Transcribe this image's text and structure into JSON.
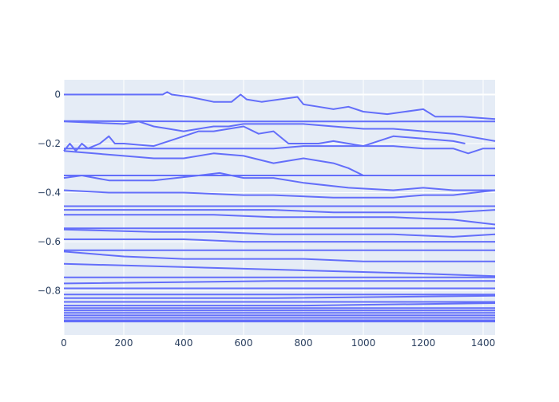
{
  "chart_data": {
    "type": "line",
    "title": "",
    "xlabel": "",
    "ylabel": "",
    "xlim": [
      0,
      1440
    ],
    "ylim": [
      -0.98,
      0.06
    ],
    "x_ticks": [
      0,
      200,
      400,
      600,
      800,
      1000,
      1200,
      1400
    ],
    "y_ticks": [
      0,
      -0.2,
      -0.4,
      -0.6,
      -0.8
    ],
    "x_tick_labels": [
      "0",
      "200",
      "400",
      "600",
      "800",
      "1000",
      "1200",
      "1400"
    ],
    "y_tick_labels": [
      "0",
      "−0.2",
      "−0.4",
      "−0.6",
      "−0.8"
    ],
    "grid": true,
    "legend": "none",
    "colors": {
      "series": "#636efa",
      "plot_background": "#e5ecf6",
      "grid": "#ffffff",
      "tick_text": "#2a3f5f"
    },
    "series": [
      {
        "x": [
          0,
          330,
          345,
          360,
          420,
          500,
          560,
          590,
          610,
          660,
          780,
          800,
          850,
          900,
          950,
          1000,
          1080,
          1200,
          1240,
          1330,
          1440
        ],
        "values": [
          0,
          0,
          0.01,
          0,
          -0.01,
          -0.03,
          -0.03,
          0,
          -0.02,
          -0.03,
          -0.01,
          -0.04,
          -0.05,
          -0.06,
          -0.05,
          -0.07,
          -0.08,
          -0.06,
          -0.09,
          -0.09,
          -0.1
        ]
      },
      {
        "x": [
          0,
          500,
          600,
          800,
          900,
          1000,
          1100,
          1200,
          1300,
          1440
        ],
        "values": [
          -0.108,
          -0.11,
          -0.11,
          -0.11,
          -0.11,
          -0.11,
          -0.11,
          -0.11,
          -0.11,
          -0.11
        ]
      },
      {
        "x": [
          0,
          200,
          250,
          300,
          350,
          400,
          450,
          500,
          550,
          600,
          700,
          800,
          900,
          1000,
          1100,
          1200,
          1300,
          1440
        ],
        "values": [
          -0.11,
          -0.12,
          -0.11,
          -0.13,
          -0.14,
          -0.15,
          -0.14,
          -0.13,
          -0.13,
          -0.12,
          -0.12,
          -0.12,
          -0.13,
          -0.14,
          -0.14,
          -0.15,
          -0.16,
          -0.19
        ]
      },
      {
        "x": [
          0,
          20,
          40,
          60,
          80,
          120,
          150,
          170,
          200,
          300,
          350,
          400,
          450,
          500,
          600,
          650,
          700,
          750,
          850,
          900,
          950,
          1000,
          1100,
          1200,
          1300,
          1340
        ],
        "values": [
          -0.23,
          -0.2,
          -0.23,
          -0.2,
          -0.22,
          -0.2,
          -0.17,
          -0.2,
          -0.2,
          -0.21,
          -0.19,
          -0.17,
          -0.15,
          -0.15,
          -0.13,
          -0.16,
          -0.15,
          -0.2,
          -0.2,
          -0.19,
          -0.2,
          -0.21,
          -0.17,
          -0.18,
          -0.19,
          -0.2
        ]
      },
      {
        "x": [
          0,
          100,
          200,
          300,
          400,
          500,
          600,
          700,
          800,
          900,
          1000,
          1100,
          1200,
          1300,
          1350,
          1400,
          1440
        ],
        "values": [
          -0.22,
          -0.22,
          -0.22,
          -0.22,
          -0.22,
          -0.22,
          -0.22,
          -0.22,
          -0.21,
          -0.21,
          -0.21,
          -0.21,
          -0.22,
          -0.22,
          -0.24,
          -0.22,
          -0.22
        ]
      },
      {
        "x": [
          0,
          100,
          200,
          300,
          400,
          500,
          600,
          700,
          800,
          900,
          950,
          1000,
          1100,
          1200,
          1300
        ],
        "values": [
          -0.23,
          -0.24,
          -0.25,
          -0.26,
          -0.26,
          -0.24,
          -0.25,
          -0.28,
          -0.26,
          -0.28,
          -0.3,
          -0.33,
          -0.33,
          -0.33,
          -0.33
        ]
      },
      {
        "x": [
          0,
          1440
        ],
        "values": [
          -0.33,
          -0.33
        ]
      },
      {
        "x": [
          0,
          60,
          150,
          300,
          450,
          520,
          600,
          700,
          800,
          950,
          1100,
          1200,
          1300,
          1440
        ],
        "values": [
          -0.34,
          -0.33,
          -0.35,
          -0.35,
          -0.33,
          -0.32,
          -0.34,
          -0.34,
          -0.36,
          -0.38,
          -0.39,
          -0.38,
          -0.39,
          -0.39
        ]
      },
      {
        "x": [
          0,
          150,
          300,
          400,
          600,
          700,
          900,
          1100,
          1200,
          1300,
          1440
        ],
        "values": [
          -0.39,
          -0.4,
          -0.4,
          -0.4,
          -0.41,
          -0.41,
          -0.42,
          -0.42,
          -0.41,
          -0.41,
          -0.39
        ]
      },
      {
        "x": [
          0,
          1440
        ],
        "values": [
          -0.455,
          -0.455
        ]
      },
      {
        "x": [
          0,
          300,
          500,
          700,
          900,
          1100,
          1300,
          1440
        ],
        "values": [
          -0.47,
          -0.47,
          -0.47,
          -0.47,
          -0.48,
          -0.48,
          -0.48,
          -0.47
        ]
      },
      {
        "x": [
          0,
          300,
          500,
          700,
          900,
          1100,
          1300,
          1440
        ],
        "values": [
          -0.49,
          -0.49,
          -0.49,
          -0.5,
          -0.5,
          -0.5,
          -0.51,
          -0.53
        ]
      },
      {
        "x": [
          0,
          1440
        ],
        "values": [
          -0.545,
          -0.545
        ]
      },
      {
        "x": [
          0,
          300,
          500,
          700,
          900,
          1100,
          1300,
          1440
        ],
        "values": [
          -0.55,
          -0.56,
          -0.56,
          -0.57,
          -0.57,
          -0.57,
          -0.58,
          -0.57
        ]
      },
      {
        "x": [
          0,
          400,
          600,
          800,
          1000,
          1200,
          1440
        ],
        "values": [
          -0.59,
          -0.59,
          -0.6,
          -0.6,
          -0.6,
          -0.6,
          -0.6
        ]
      },
      {
        "x": [
          0,
          1440
        ],
        "values": [
          -0.635,
          -0.635
        ]
      },
      {
        "x": [
          0,
          200,
          400,
          600,
          800,
          1000,
          1200,
          1440
        ],
        "values": [
          -0.64,
          -0.66,
          -0.67,
          -0.67,
          -0.67,
          -0.68,
          -0.68,
          -0.68
        ]
      },
      {
        "x": [
          0,
          300,
          600,
          900,
          1200,
          1440
        ],
        "values": [
          -0.69,
          -0.7,
          -0.71,
          -0.72,
          -0.73,
          -0.74
        ]
      },
      {
        "x": [
          0,
          1440
        ],
        "values": [
          -0.745,
          -0.745
        ]
      },
      {
        "x": [
          0,
          700,
          1440
        ],
        "values": [
          -0.77,
          -0.76,
          -0.76
        ]
      },
      {
        "x": [
          0,
          800,
          1440
        ],
        "values": [
          -0.79,
          -0.79,
          -0.79
        ]
      },
      {
        "x": [
          0,
          1440
        ],
        "values": [
          -0.815,
          -0.815
        ]
      },
      {
        "x": [
          0,
          700,
          1440
        ],
        "values": [
          -0.83,
          -0.83,
          -0.82
        ]
      },
      {
        "x": [
          0,
          1440
        ],
        "values": [
          -0.845,
          -0.845
        ]
      },
      {
        "x": [
          0,
          800,
          1440
        ],
        "values": [
          -0.86,
          -0.86,
          -0.85
        ]
      },
      {
        "x": [
          0,
          1440
        ],
        "values": [
          -0.87,
          -0.87
        ]
      },
      {
        "x": [
          0,
          700,
          1440
        ],
        "values": [
          -0.88,
          -0.88,
          -0.88
        ]
      },
      {
        "x": [
          0,
          1440
        ],
        "values": [
          -0.89,
          -0.89
        ]
      },
      {
        "x": [
          0,
          600,
          1440
        ],
        "values": [
          -0.9,
          -0.9,
          -0.9
        ]
      },
      {
        "x": [
          0,
          1440
        ],
        "values": [
          -0.91,
          -0.91
        ]
      },
      {
        "x": [
          0,
          800,
          1440
        ],
        "values": [
          -0.92,
          -0.92,
          -0.92
        ]
      },
      {
        "x": [
          0,
          1440
        ],
        "values": [
          -0.925,
          -0.925
        ]
      }
    ]
  }
}
